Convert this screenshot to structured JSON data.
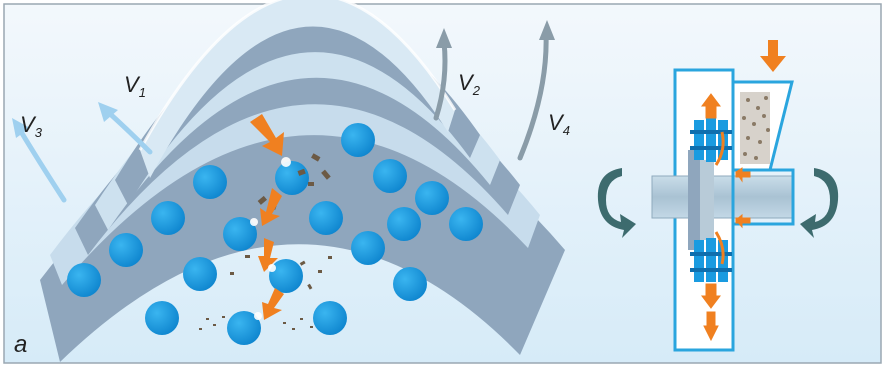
{
  "figure": {
    "panel_label": "a",
    "velocity_labels": [
      {
        "id": "v1",
        "letter": "V",
        "sub": "1"
      },
      {
        "id": "v2",
        "letter": "V",
        "sub": "2"
      },
      {
        "id": "v3",
        "letter": "V",
        "sub": "3"
      },
      {
        "id": "v4",
        "letter": "V",
        "sub": "4"
      }
    ],
    "colors": {
      "background_top": "#f3f8fc",
      "background_bottom": "#d9ecf8",
      "band_dark": "#8fa6bd",
      "band_light": "#cde1ef",
      "ball": "#1a9be0",
      "arrow_orange": "#f08020",
      "arrow_blue": "#9fd0ef",
      "arrow_gray": "#8a9ca8",
      "outline": "#2aa5de",
      "rotation_icon": "#3d6b6e"
    },
    "icons": [
      "rotation-left-icon",
      "rotation-right-icon",
      "feed-arrow-icon"
    ]
  }
}
